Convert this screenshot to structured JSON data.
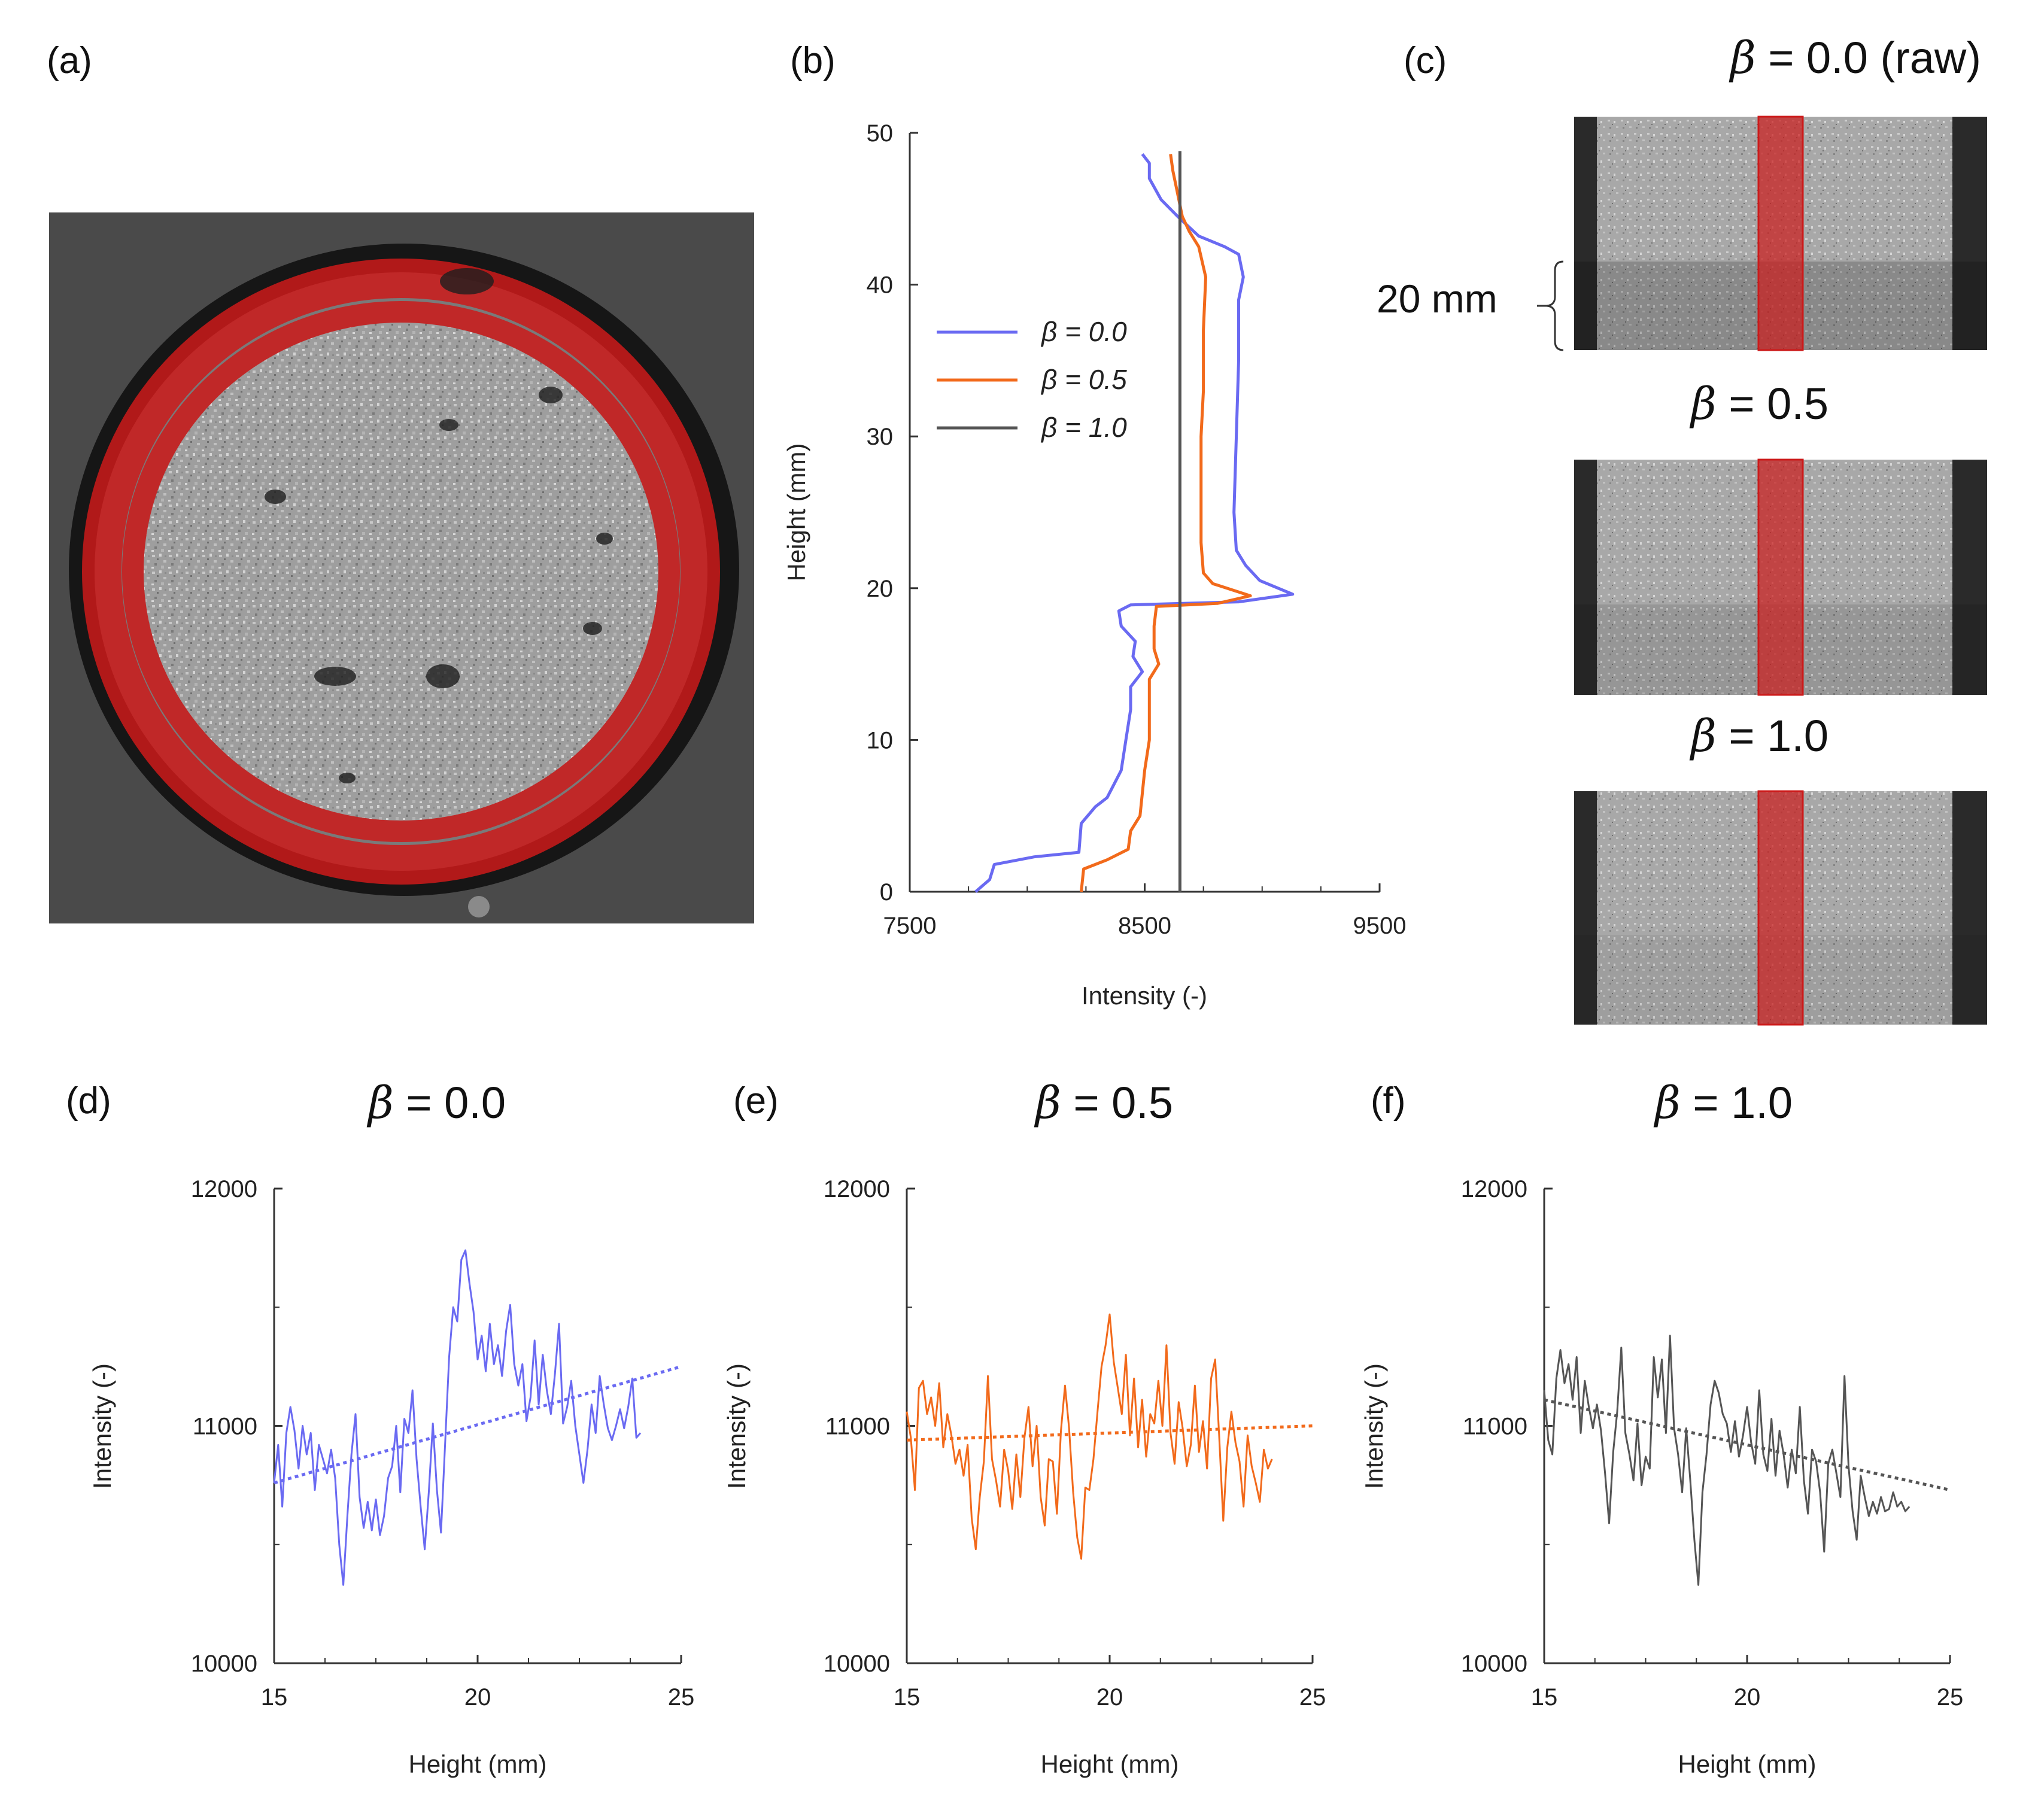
{
  "panels": {
    "a": {
      "label": "(a)"
    },
    "b": {
      "label": "(b)"
    },
    "c": {
      "label": "(c)",
      "scale_label": "20 mm",
      "titles": [
        {
          "beta": "β",
          "text": " = 0.0 (raw)"
        },
        {
          "beta": "β",
          "text": " = 0.5"
        },
        {
          "beta": "β",
          "text": " = 1.0"
        }
      ]
    },
    "d": {
      "label": "(d)",
      "title_beta": "β",
      "title_text": " = 0.0"
    },
    "e": {
      "label": "(e)",
      "title_beta": "β",
      "title_text": " = 0.5"
    },
    "f": {
      "label": "(f)",
      "title_beta": "β",
      "title_text": " = 1.0"
    }
  },
  "colors": {
    "blue": "#6a6af2",
    "orange": "#f26a1b",
    "gray": "#555555",
    "red": "#cc1a1a"
  },
  "chart_data": [
    {
      "id": "b",
      "type": "line",
      "xlabel": "Intensity (-)",
      "ylabel": "Height (mm)",
      "xlim": [
        7500,
        9500
      ],
      "ylim": [
        0,
        50
      ],
      "xticks": [
        7500,
        8500,
        9500
      ],
      "yticks": [
        0,
        10,
        20,
        30,
        40,
        50
      ],
      "legend": [
        "β = 0.0",
        "β = 0.5",
        "β = 1.0"
      ],
      "series": [
        {
          "name": "β = 0.0",
          "color": "blue",
          "points": [
            [
              7780,
              0
            ],
            [
              7840,
              0.8
            ],
            [
              7860,
              1.8
            ],
            [
              8030,
              2.3
            ],
            [
              8220,
              2.6
            ],
            [
              8230,
              4.5
            ],
            [
              8290,
              5.6
            ],
            [
              8340,
              6.2
            ],
            [
              8400,
              8
            ],
            [
              8420,
              10
            ],
            [
              8440,
              12
            ],
            [
              8440,
              13.5
            ],
            [
              8490,
              14.5
            ],
            [
              8450,
              15.5
            ],
            [
              8460,
              16.5
            ],
            [
              8400,
              17.5
            ],
            [
              8390,
              18.5
            ],
            [
              8440,
              18.9
            ],
            [
              8900,
              19.1
            ],
            [
              9130,
              19.6
            ],
            [
              8990,
              20.5
            ],
            [
              8930,
              21.5
            ],
            [
              8890,
              22.5
            ],
            [
              8880,
              25
            ],
            [
              8890,
              30
            ],
            [
              8900,
              35
            ],
            [
              8900,
              39
            ],
            [
              8920,
              40.5
            ],
            [
              8900,
              42
            ],
            [
              8840,
              42.5
            ],
            [
              8730,
              43.2
            ],
            [
              8640,
              44.5
            ],
            [
              8570,
              45.6
            ],
            [
              8520,
              47
            ],
            [
              8520,
              48
            ],
            [
              8490,
              48.6
            ]
          ]
        },
        {
          "name": "β = 0.5",
          "color": "orange",
          "points": [
            [
              8230,
              0
            ],
            [
              8240,
              1.5
            ],
            [
              8340,
              2.1
            ],
            [
              8430,
              2.8
            ],
            [
              8440,
              4
            ],
            [
              8480,
              5
            ],
            [
              8500,
              8
            ],
            [
              8520,
              10
            ],
            [
              8520,
              12
            ],
            [
              8520,
              14
            ],
            [
              8560,
              15
            ],
            [
              8540,
              16
            ],
            [
              8540,
              17.5
            ],
            [
              8550,
              18.8
            ],
            [
              8810,
              19
            ],
            [
              8950,
              19.5
            ],
            [
              8790,
              20.3
            ],
            [
              8750,
              21
            ],
            [
              8740,
              23
            ],
            [
              8740,
              26
            ],
            [
              8740,
              30
            ],
            [
              8750,
              33
            ],
            [
              8750,
              37
            ],
            [
              8760,
              40.5
            ],
            [
              8730,
              42.5
            ],
            [
              8690,
              43.5
            ],
            [
              8660,
              44.5
            ],
            [
              8640,
              46
            ],
            [
              8620,
              47.5
            ],
            [
              8610,
              48.6
            ]
          ]
        },
        {
          "name": "β = 1.0",
          "color": "gray",
          "points": [
            [
              8650,
              0
            ],
            [
              8650,
              48.8
            ]
          ]
        }
      ]
    },
    {
      "id": "d",
      "type": "line",
      "xlabel": "Height (mm)",
      "ylabel": "Intensity (-)",
      "xlim": [
        15,
        25
      ],
      "ylim": [
        10000,
        12000
      ],
      "xticks": [
        15,
        20,
        25
      ],
      "yticks": [
        10000,
        11000,
        12000
      ],
      "series": [
        {
          "name": "β = 0.0",
          "color": "blue",
          "x_start": 15,
          "x_step": 0.1,
          "values": [
            10760,
            10920,
            10660,
            10970,
            11080,
            10980,
            10820,
            11000,
            10880,
            10970,
            10730,
            10920,
            10860,
            10800,
            10900,
            10780,
            10500,
            10330,
            10620,
            10880,
            11050,
            10700,
            10570,
            10680,
            10560,
            10690,
            10540,
            10620,
            10780,
            10830,
            11000,
            10720,
            11030,
            10970,
            11150,
            10860,
            10660,
            10480,
            10720,
            11010,
            10730,
            10550,
            10920,
            11290,
            11500,
            11440,
            11700,
            11740,
            11600,
            11480,
            11280,
            11380,
            11230,
            11430,
            11260,
            11340,
            11210,
            11400,
            11510,
            11260,
            11170,
            11260,
            11020,
            11120,
            11360,
            11090,
            11300,
            11150,
            11050,
            11220,
            11430,
            11010,
            11080,
            11190,
            11000,
            10880,
            10760,
            10900,
            11090,
            10970,
            11210,
            11090,
            10990,
            10940,
            11000,
            11070,
            10990,
            11080,
            11200,
            10950,
            10970
          ]
        },
        {
          "name": "trend",
          "color": "blue",
          "dashed": true,
          "x_start": 15,
          "x_step": 10,
          "values": [
            10760,
            11250
          ]
        }
      ]
    },
    {
      "id": "e",
      "type": "line",
      "xlabel": "Height (mm)",
      "ylabel": "Intensity (-)",
      "xlim": [
        15,
        25
      ],
      "ylim": [
        10000,
        12000
      ],
      "xticks": [
        15,
        20,
        25
      ],
      "yticks": [
        10000,
        11000,
        12000
      ],
      "series": [
        {
          "name": "β = 0.5",
          "color": "orange",
          "x_start": 15,
          "x_step": 0.1,
          "values": [
            11060,
            10950,
            10730,
            11160,
            11190,
            11050,
            11120,
            11000,
            11180,
            10910,
            11050,
            10960,
            10840,
            10900,
            10790,
            10920,
            10610,
            10480,
            10700,
            10850,
            11210,
            10860,
            10770,
            10660,
            10900,
            10810,
            10650,
            10880,
            10700,
            10950,
            11080,
            10830,
            11000,
            10700,
            10580,
            10860,
            10850,
            10630,
            10980,
            11170,
            10990,
            10720,
            10530,
            10440,
            10740,
            10730,
            10860,
            11060,
            11250,
            11340,
            11470,
            11270,
            11160,
            11050,
            11300,
            10960,
            11200,
            10910,
            11110,
            10870,
            11050,
            11010,
            11190,
            11000,
            11340,
            10970,
            10840,
            11100,
            10990,
            10830,
            10920,
            11170,
            10890,
            11020,
            10820,
            11200,
            11280,
            10950,
            10600,
            10910,
            11060,
            10930,
            10850,
            10660,
            10960,
            10830,
            10760,
            10680,
            10900,
            10820,
            10860
          ]
        },
        {
          "name": "trend",
          "color": "orange",
          "dashed": true,
          "x_start": 15,
          "x_step": 10,
          "values": [
            10940,
            11000
          ]
        }
      ]
    },
    {
      "id": "f",
      "type": "line",
      "xlabel": "Height (mm)",
      "ylabel": "Intensity (-)",
      "xlim": [
        15,
        25
      ],
      "ylim": [
        10000,
        12000
      ],
      "xticks": [
        15,
        20,
        25
      ],
      "yticks": [
        10000,
        11000,
        12000
      ],
      "series": [
        {
          "name": "β = 1.0",
          "color": "gray",
          "x_start": 15,
          "x_step": 0.1,
          "values": [
            11150,
            10940,
            10880,
            11200,
            11320,
            11180,
            11260,
            11110,
            11290,
            10970,
            11190,
            11080,
            10990,
            11090,
            10980,
            10800,
            10590,
            10890,
            11060,
            11330,
            10970,
            10880,
            10770,
            11010,
            10750,
            10870,
            10820,
            11290,
            11120,
            11280,
            10970,
            11380,
            10990,
            10880,
            10720,
            10990,
            10770,
            10520,
            10330,
            10720,
            10880,
            11090,
            11190,
            11140,
            11050,
            11010,
            10890,
            11020,
            10870,
            10960,
            11080,
            10930,
            10840,
            11150,
            10880,
            10810,
            11030,
            10790,
            10980,
            10880,
            10740,
            10900,
            10800,
            11080,
            10770,
            10630,
            10900,
            10850,
            10720,
            10470,
            10840,
            10900,
            10800,
            10700,
            11210,
            10830,
            10640,
            10520,
            10790,
            10700,
            10620,
            10680,
            10630,
            10700,
            10640,
            10650,
            10720,
            10660,
            10680,
            10640,
            10660
          ]
        },
        {
          "name": "trend",
          "color": "gray",
          "dashed": true,
          "x_start": 15,
          "x_step": 10,
          "values": [
            11110,
            10730
          ]
        }
      ]
    }
  ]
}
